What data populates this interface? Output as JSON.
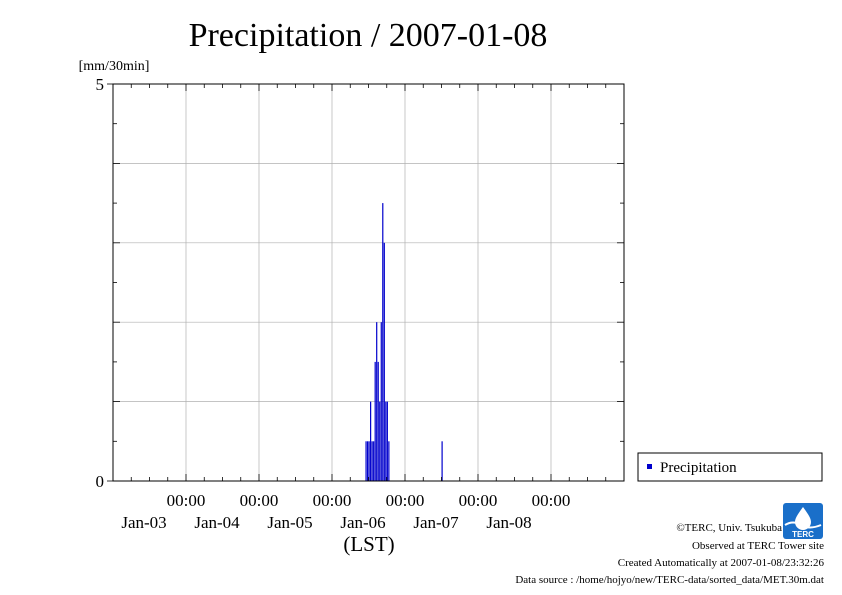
{
  "chart_data": {
    "type": "bar",
    "title": "Precipitation / 2007-01-08",
    "ylabel": "[mm/30min]",
    "xlabel": "(LST)",
    "ylim": [
      0,
      5
    ],
    "y_ticks": [
      "0",
      "5"
    ],
    "x_range": [
      "2007-01-02T00:00",
      "2007-01-09T00:00"
    ],
    "x_tick_labels": [
      {
        "time": "00:00",
        "date": "Jan-03"
      },
      {
        "time": "00:00",
        "date": "Jan-04"
      },
      {
        "time": "00:00",
        "date": "Jan-05"
      },
      {
        "time": "00:00",
        "date": "Jan-06"
      },
      {
        "time": "00:00",
        "date": "Jan-07"
      },
      {
        "time": "00:00",
        "date": "Jan-08"
      }
    ],
    "grid": true,
    "legend_position": "right",
    "series": [
      {
        "name": "Precipitation",
        "color": "#0000cc",
        "points": [
          {
            "t": "2007-01-05T11:00",
            "v": 0.5
          },
          {
            "t": "2007-01-05T11:30",
            "v": 0.5
          },
          {
            "t": "2007-01-05T12:00",
            "v": 0.5
          },
          {
            "t": "2007-01-05T12:30",
            "v": 1.0
          },
          {
            "t": "2007-01-05T13:00",
            "v": 0.5
          },
          {
            "t": "2007-01-05T13:30",
            "v": 0.5
          },
          {
            "t": "2007-01-05T14:00",
            "v": 1.5
          },
          {
            "t": "2007-01-05T14:30",
            "v": 2.0
          },
          {
            "t": "2007-01-05T15:00",
            "v": 1.5
          },
          {
            "t": "2007-01-05T15:30",
            "v": 1.0
          },
          {
            "t": "2007-01-05T16:00",
            "v": 2.0
          },
          {
            "t": "2007-01-05T16:30",
            "v": 3.5
          },
          {
            "t": "2007-01-05T17:00",
            "v": 3.0
          },
          {
            "t": "2007-01-05T17:30",
            "v": 1.0
          },
          {
            "t": "2007-01-05T18:00",
            "v": 1.0
          },
          {
            "t": "2007-01-05T18:30",
            "v": 0.5
          },
          {
            "t": "2007-01-06T12:00",
            "v": 0.5
          }
        ]
      }
    ]
  },
  "footer": {
    "copyright": "©TERC, Univ. Tsukuba",
    "observed": "Observed at TERC Tower site",
    "created": "Created Automatically at 2007-01-08/23:32:26",
    "source": "Data source : /home/hojyo/new/TERC-data/sorted_data/MET.30m.dat",
    "logo_text": "TERC"
  }
}
